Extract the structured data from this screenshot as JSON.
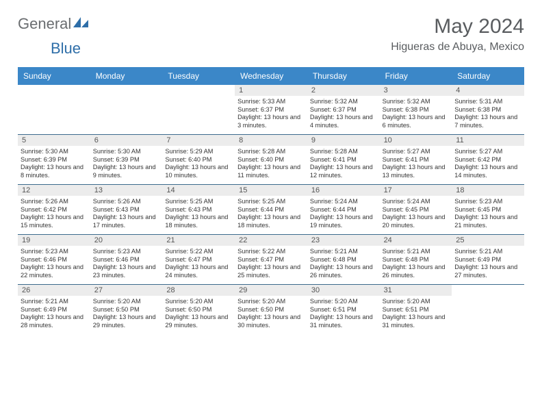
{
  "brand": {
    "part1": "General",
    "part2": "Blue"
  },
  "title": "May 2024",
  "location": "Higueras de Abuya, Mexico",
  "colors": {
    "header_bg": "#3b87c8",
    "header_text": "#ffffff",
    "grid_border": "#3b6a8c",
    "numrow_bg": "#ececec",
    "text": "#333333",
    "title_text": "#595c5f",
    "logo_gray": "#6a6d70",
    "logo_blue": "#2e6ea8"
  },
  "day_names": [
    "Sunday",
    "Monday",
    "Tuesday",
    "Wednesday",
    "Thursday",
    "Friday",
    "Saturday"
  ],
  "weeks": [
    [
      {
        "n": "",
        "sr": "",
        "ss": "",
        "dl": ""
      },
      {
        "n": "",
        "sr": "",
        "ss": "",
        "dl": ""
      },
      {
        "n": "",
        "sr": "",
        "ss": "",
        "dl": ""
      },
      {
        "n": "1",
        "sr": "Sunrise: 5:33 AM",
        "ss": "Sunset: 6:37 PM",
        "dl": "Daylight: 13 hours and 3 minutes."
      },
      {
        "n": "2",
        "sr": "Sunrise: 5:32 AM",
        "ss": "Sunset: 6:37 PM",
        "dl": "Daylight: 13 hours and 4 minutes."
      },
      {
        "n": "3",
        "sr": "Sunrise: 5:32 AM",
        "ss": "Sunset: 6:38 PM",
        "dl": "Daylight: 13 hours and 6 minutes."
      },
      {
        "n": "4",
        "sr": "Sunrise: 5:31 AM",
        "ss": "Sunset: 6:38 PM",
        "dl": "Daylight: 13 hours and 7 minutes."
      }
    ],
    [
      {
        "n": "5",
        "sr": "Sunrise: 5:30 AM",
        "ss": "Sunset: 6:39 PM",
        "dl": "Daylight: 13 hours and 8 minutes."
      },
      {
        "n": "6",
        "sr": "Sunrise: 5:30 AM",
        "ss": "Sunset: 6:39 PM",
        "dl": "Daylight: 13 hours and 9 minutes."
      },
      {
        "n": "7",
        "sr": "Sunrise: 5:29 AM",
        "ss": "Sunset: 6:40 PM",
        "dl": "Daylight: 13 hours and 10 minutes."
      },
      {
        "n": "8",
        "sr": "Sunrise: 5:28 AM",
        "ss": "Sunset: 6:40 PM",
        "dl": "Daylight: 13 hours and 11 minutes."
      },
      {
        "n": "9",
        "sr": "Sunrise: 5:28 AM",
        "ss": "Sunset: 6:41 PM",
        "dl": "Daylight: 13 hours and 12 minutes."
      },
      {
        "n": "10",
        "sr": "Sunrise: 5:27 AM",
        "ss": "Sunset: 6:41 PM",
        "dl": "Daylight: 13 hours and 13 minutes."
      },
      {
        "n": "11",
        "sr": "Sunrise: 5:27 AM",
        "ss": "Sunset: 6:42 PM",
        "dl": "Daylight: 13 hours and 14 minutes."
      }
    ],
    [
      {
        "n": "12",
        "sr": "Sunrise: 5:26 AM",
        "ss": "Sunset: 6:42 PM",
        "dl": "Daylight: 13 hours and 15 minutes."
      },
      {
        "n": "13",
        "sr": "Sunrise: 5:26 AM",
        "ss": "Sunset: 6:43 PM",
        "dl": "Daylight: 13 hours and 17 minutes."
      },
      {
        "n": "14",
        "sr": "Sunrise: 5:25 AM",
        "ss": "Sunset: 6:43 PM",
        "dl": "Daylight: 13 hours and 18 minutes."
      },
      {
        "n": "15",
        "sr": "Sunrise: 5:25 AM",
        "ss": "Sunset: 6:44 PM",
        "dl": "Daylight: 13 hours and 18 minutes."
      },
      {
        "n": "16",
        "sr": "Sunrise: 5:24 AM",
        "ss": "Sunset: 6:44 PM",
        "dl": "Daylight: 13 hours and 19 minutes."
      },
      {
        "n": "17",
        "sr": "Sunrise: 5:24 AM",
        "ss": "Sunset: 6:45 PM",
        "dl": "Daylight: 13 hours and 20 minutes."
      },
      {
        "n": "18",
        "sr": "Sunrise: 5:23 AM",
        "ss": "Sunset: 6:45 PM",
        "dl": "Daylight: 13 hours and 21 minutes."
      }
    ],
    [
      {
        "n": "19",
        "sr": "Sunrise: 5:23 AM",
        "ss": "Sunset: 6:46 PM",
        "dl": "Daylight: 13 hours and 22 minutes."
      },
      {
        "n": "20",
        "sr": "Sunrise: 5:23 AM",
        "ss": "Sunset: 6:46 PM",
        "dl": "Daylight: 13 hours and 23 minutes."
      },
      {
        "n": "21",
        "sr": "Sunrise: 5:22 AM",
        "ss": "Sunset: 6:47 PM",
        "dl": "Daylight: 13 hours and 24 minutes."
      },
      {
        "n": "22",
        "sr": "Sunrise: 5:22 AM",
        "ss": "Sunset: 6:47 PM",
        "dl": "Daylight: 13 hours and 25 minutes."
      },
      {
        "n": "23",
        "sr": "Sunrise: 5:21 AM",
        "ss": "Sunset: 6:48 PM",
        "dl": "Daylight: 13 hours and 26 minutes."
      },
      {
        "n": "24",
        "sr": "Sunrise: 5:21 AM",
        "ss": "Sunset: 6:48 PM",
        "dl": "Daylight: 13 hours and 26 minutes."
      },
      {
        "n": "25",
        "sr": "Sunrise: 5:21 AM",
        "ss": "Sunset: 6:49 PM",
        "dl": "Daylight: 13 hours and 27 minutes."
      }
    ],
    [
      {
        "n": "26",
        "sr": "Sunrise: 5:21 AM",
        "ss": "Sunset: 6:49 PM",
        "dl": "Daylight: 13 hours and 28 minutes."
      },
      {
        "n": "27",
        "sr": "Sunrise: 5:20 AM",
        "ss": "Sunset: 6:50 PM",
        "dl": "Daylight: 13 hours and 29 minutes."
      },
      {
        "n": "28",
        "sr": "Sunrise: 5:20 AM",
        "ss": "Sunset: 6:50 PM",
        "dl": "Daylight: 13 hours and 29 minutes."
      },
      {
        "n": "29",
        "sr": "Sunrise: 5:20 AM",
        "ss": "Sunset: 6:50 PM",
        "dl": "Daylight: 13 hours and 30 minutes."
      },
      {
        "n": "30",
        "sr": "Sunrise: 5:20 AM",
        "ss": "Sunset: 6:51 PM",
        "dl": "Daylight: 13 hours and 31 minutes."
      },
      {
        "n": "31",
        "sr": "Sunrise: 5:20 AM",
        "ss": "Sunset: 6:51 PM",
        "dl": "Daylight: 13 hours and 31 minutes."
      },
      {
        "n": "",
        "sr": "",
        "ss": "",
        "dl": ""
      }
    ]
  ]
}
